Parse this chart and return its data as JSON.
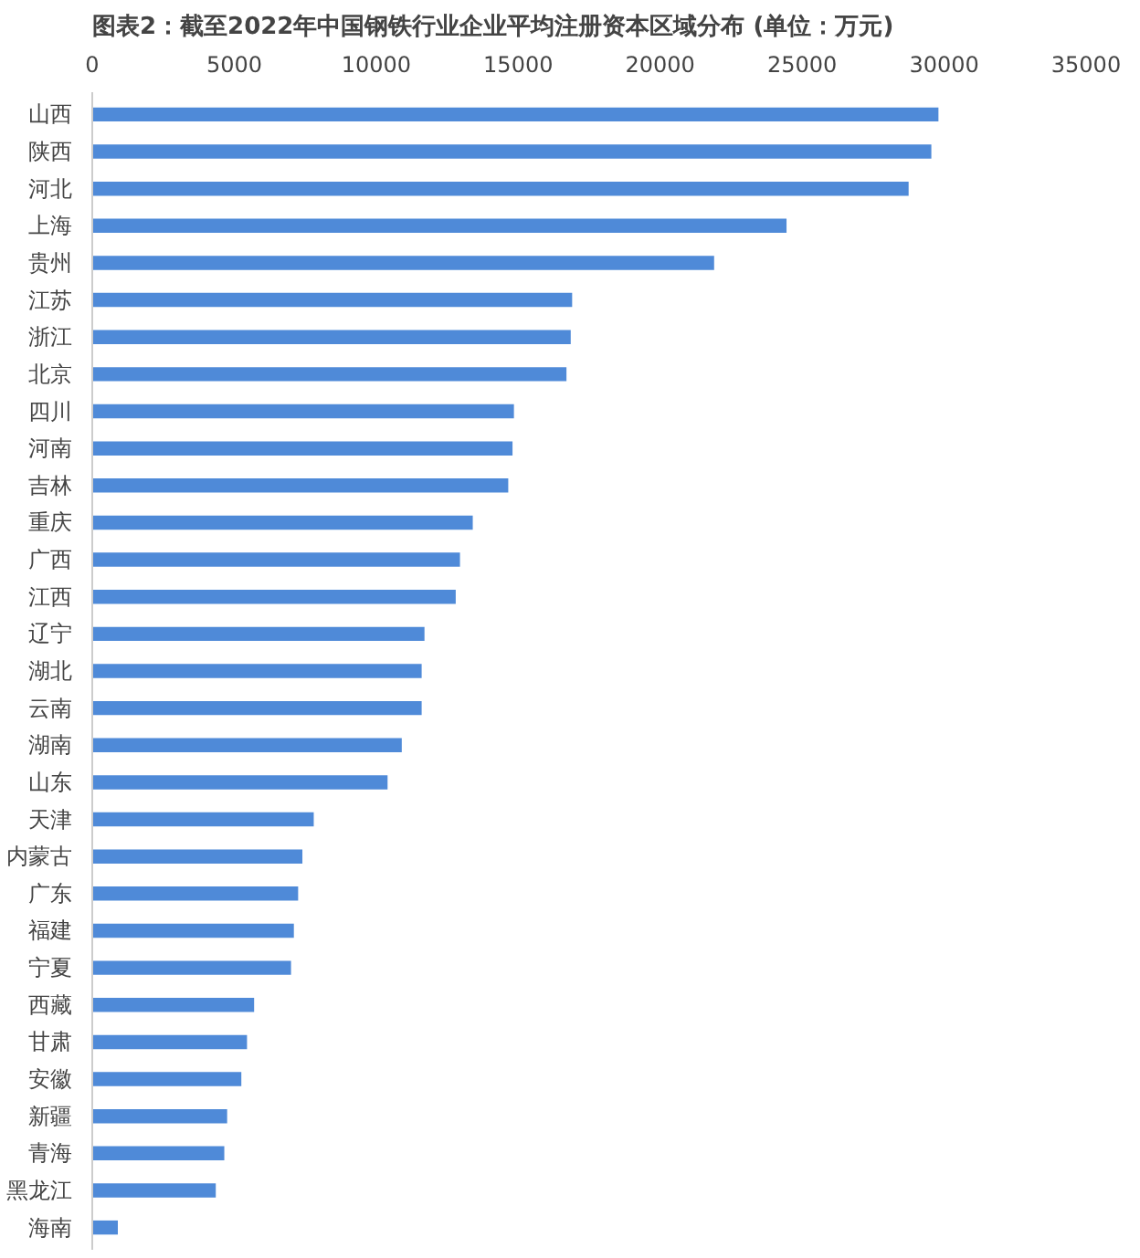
{
  "chart_data": {
    "type": "bar",
    "orientation": "horizontal",
    "title": "图表2：截至2022年中国钢铁行业企业平均注册资本区域分布 (单位：万元)",
    "categories": [
      "山西",
      "陕西",
      "河北",
      "上海",
      "贵州",
      "江苏",
      "浙江",
      "北京",
      "四川",
      "河南",
      "吉林",
      "重庆",
      "广西",
      "江西",
      "辽宁",
      "湖北",
      "云南",
      "湖南",
      "山东",
      "天津",
      "内蒙古",
      "广东",
      "福建",
      "宁夏",
      "西藏",
      "甘肃",
      "安徽",
      "新疆",
      "青海",
      "黑龙江",
      "海南"
    ],
    "values": [
      29800,
      29550,
      28750,
      24450,
      21900,
      16900,
      16850,
      16700,
      14850,
      14800,
      14650,
      13400,
      12950,
      12800,
      11700,
      11600,
      11600,
      10900,
      10400,
      7800,
      7400,
      7250,
      7100,
      7000,
      5700,
      5450,
      5250,
      4750,
      4650,
      4350,
      900
    ],
    "color": "#4f8ad8",
    "xlim": [
      0,
      35000
    ],
    "xticks": [
      0,
      5000,
      10000,
      15000,
      20000,
      25000,
      30000,
      35000
    ],
    "grid": false
  }
}
